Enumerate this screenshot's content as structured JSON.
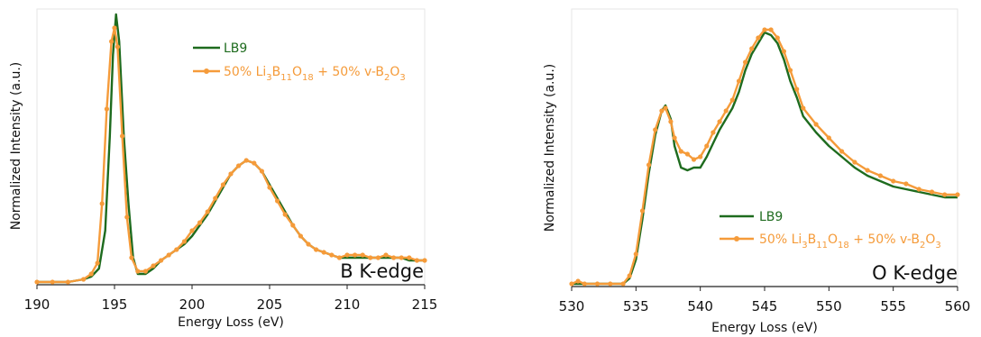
{
  "chart_data": [
    {
      "type": "line",
      "title": "",
      "annotation": "B K-edge",
      "xlabel": "Energy Loss (eV)",
      "ylabel": "Normalized Intensity (a.u.)",
      "xlim": [
        190,
        215
      ],
      "ylim": [
        0,
        1.0
      ],
      "xticks": [
        190,
        195,
        200,
        205,
        210,
        215
      ],
      "grid": false,
      "legend_position": "top-right",
      "series": [
        {
          "name": "LB9",
          "color": "#1e6b1e",
          "marker": "none",
          "points": [
            [
              190,
              0.01
            ],
            [
              191,
              0.01
            ],
            [
              192,
              0.01
            ],
            [
              193,
              0.02
            ],
            [
              193.5,
              0.03
            ],
            [
              194,
              0.06
            ],
            [
              194.4,
              0.2
            ],
            [
              194.7,
              0.55
            ],
            [
              194.9,
              0.85
            ],
            [
              195.1,
              1.0
            ],
            [
              195.3,
              0.9
            ],
            [
              195.6,
              0.55
            ],
            [
              195.9,
              0.3
            ],
            [
              196.2,
              0.1
            ],
            [
              196.5,
              0.04
            ],
            [
              197,
              0.04
            ],
            [
              197.5,
              0.06
            ],
            [
              198,
              0.09
            ],
            [
              198.5,
              0.11
            ],
            [
              199,
              0.13
            ],
            [
              199.5,
              0.15
            ],
            [
              200,
              0.18
            ],
            [
              200.5,
              0.22
            ],
            [
              201,
              0.26
            ],
            [
              201.5,
              0.31
            ],
            [
              202,
              0.36
            ],
            [
              202.5,
              0.41
            ],
            [
              203,
              0.44
            ],
            [
              203.5,
              0.46
            ],
            [
              204,
              0.45
            ],
            [
              204.5,
              0.42
            ],
            [
              205,
              0.37
            ],
            [
              205.5,
              0.32
            ],
            [
              206,
              0.27
            ],
            [
              206.5,
              0.22
            ],
            [
              207,
              0.18
            ],
            [
              207.5,
              0.15
            ],
            [
              208,
              0.13
            ],
            [
              208.5,
              0.12
            ],
            [
              209,
              0.11
            ],
            [
              209.5,
              0.1
            ],
            [
              210,
              0.1
            ],
            [
              210.5,
              0.1
            ],
            [
              211,
              0.1
            ],
            [
              211.5,
              0.1
            ],
            [
              212,
              0.1
            ],
            [
              212.5,
              0.1
            ],
            [
              213,
              0.1
            ],
            [
              213.5,
              0.1
            ],
            [
              214,
              0.09
            ],
            [
              214.5,
              0.09
            ],
            [
              215,
              0.09
            ]
          ]
        },
        {
          "name": "50% Li3B11O18 + 50% v-B2O3",
          "color": "#f59b3a",
          "marker": "circle",
          "points": [
            [
              190,
              0.01
            ],
            [
              191,
              0.01
            ],
            [
              192,
              0.01
            ],
            [
              193,
              0.02
            ],
            [
              193.5,
              0.04
            ],
            [
              193.9,
              0.08
            ],
            [
              194.2,
              0.3
            ],
            [
              194.5,
              0.65
            ],
            [
              194.8,
              0.9
            ],
            [
              195.0,
              0.95
            ],
            [
              195.2,
              0.88
            ],
            [
              195.5,
              0.55
            ],
            [
              195.8,
              0.25
            ],
            [
              196.1,
              0.1
            ],
            [
              196.5,
              0.05
            ],
            [
              197,
              0.05
            ],
            [
              197.5,
              0.07
            ],
            [
              198,
              0.09
            ],
            [
              198.5,
              0.11
            ],
            [
              199,
              0.13
            ],
            [
              199.5,
              0.16
            ],
            [
              200,
              0.2
            ],
            [
              200.5,
              0.23
            ],
            [
              201,
              0.27
            ],
            [
              201.5,
              0.32
            ],
            [
              202,
              0.37
            ],
            [
              202.5,
              0.41
            ],
            [
              203,
              0.44
            ],
            [
              203.5,
              0.46
            ],
            [
              204,
              0.45
            ],
            [
              204.5,
              0.42
            ],
            [
              205,
              0.36
            ],
            [
              205.5,
              0.31
            ],
            [
              206,
              0.26
            ],
            [
              206.5,
              0.22
            ],
            [
              207,
              0.18
            ],
            [
              207.5,
              0.15
            ],
            [
              208,
              0.13
            ],
            [
              208.5,
              0.12
            ],
            [
              209,
              0.11
            ],
            [
              209.5,
              0.1
            ],
            [
              210,
              0.11
            ],
            [
              210.5,
              0.11
            ],
            [
              211,
              0.11
            ],
            [
              211.5,
              0.1
            ],
            [
              212,
              0.1
            ],
            [
              212.5,
              0.11
            ],
            [
              213,
              0.1
            ],
            [
              213.5,
              0.1
            ],
            [
              214,
              0.1
            ],
            [
              214.5,
              0.09
            ],
            [
              215,
              0.09
            ]
          ]
        }
      ]
    },
    {
      "type": "line",
      "title": "",
      "annotation": "O K-edge",
      "xlabel": "Energy Loss (eV)",
      "ylabel": "Normalized Intensity (a.u.)",
      "xlim": [
        530,
        560
      ],
      "ylim": [
        0,
        1.0
      ],
      "xticks": [
        530,
        535,
        540,
        545,
        550,
        555,
        560
      ],
      "grid": false,
      "legend_position": "bottom-right",
      "series": [
        {
          "name": "LB9",
          "color": "#1e6b1e",
          "marker": "none",
          "points": [
            [
              530,
              0.01
            ],
            [
              531,
              0.01
            ],
            [
              532,
              0.01
            ],
            [
              533,
              0.01
            ],
            [
              534,
              0.01
            ],
            [
              534.5,
              0.03
            ],
            [
              535,
              0.1
            ],
            [
              535.5,
              0.25
            ],
            [
              536,
              0.42
            ],
            [
              536.5,
              0.56
            ],
            [
              537,
              0.65
            ],
            [
              537.3,
              0.67
            ],
            [
              537.7,
              0.62
            ],
            [
              538,
              0.52
            ],
            [
              538.5,
              0.44
            ],
            [
              539,
              0.43
            ],
            [
              539.5,
              0.44
            ],
            [
              540,
              0.44
            ],
            [
              540.5,
              0.48
            ],
            [
              541,
              0.53
            ],
            [
              541.5,
              0.58
            ],
            [
              542,
              0.62
            ],
            [
              542.5,
              0.66
            ],
            [
              543,
              0.72
            ],
            [
              543.5,
              0.8
            ],
            [
              544,
              0.86
            ],
            [
              544.5,
              0.9
            ],
            [
              545,
              0.94
            ],
            [
              545.5,
              0.93
            ],
            [
              546,
              0.9
            ],
            [
              546.5,
              0.84
            ],
            [
              547,
              0.76
            ],
            [
              547.5,
              0.7
            ],
            [
              548,
              0.63
            ],
            [
              549,
              0.57
            ],
            [
              550,
              0.52
            ],
            [
              551,
              0.48
            ],
            [
              552,
              0.44
            ],
            [
              553,
              0.41
            ],
            [
              554,
              0.39
            ],
            [
              555,
              0.37
            ],
            [
              556,
              0.36
            ],
            [
              557,
              0.35
            ],
            [
              558,
              0.34
            ],
            [
              559,
              0.33
            ],
            [
              560,
              0.33
            ]
          ]
        },
        {
          "name": "50% Li3B11O18 + 50% v-B2O3",
          "color": "#f59b3a",
          "marker": "circle",
          "points": [
            [
              530,
              0.01
            ],
            [
              530.5,
              0.02
            ],
            [
              531,
              0.01
            ],
            [
              532,
              0.01
            ],
            [
              533,
              0.01
            ],
            [
              534,
              0.01
            ],
            [
              534.5,
              0.04
            ],
            [
              535,
              0.12
            ],
            [
              535.5,
              0.28
            ],
            [
              536,
              0.45
            ],
            [
              536.5,
              0.58
            ],
            [
              537,
              0.65
            ],
            [
              537.3,
              0.66
            ],
            [
              537.7,
              0.61
            ],
            [
              538,
              0.55
            ],
            [
              538.5,
              0.5
            ],
            [
              539,
              0.49
            ],
            [
              539.5,
              0.47
            ],
            [
              540,
              0.48
            ],
            [
              540.5,
              0.52
            ],
            [
              541,
              0.57
            ],
            [
              541.5,
              0.61
            ],
            [
              542,
              0.65
            ],
            [
              542.5,
              0.69
            ],
            [
              543,
              0.76
            ],
            [
              543.5,
              0.83
            ],
            [
              544,
              0.88
            ],
            [
              544.5,
              0.92
            ],
            [
              545,
              0.95
            ],
            [
              545.5,
              0.95
            ],
            [
              546,
              0.92
            ],
            [
              546.5,
              0.87
            ],
            [
              547,
              0.8
            ],
            [
              547.5,
              0.73
            ],
            [
              548,
              0.66
            ],
            [
              549,
              0.6
            ],
            [
              550,
              0.55
            ],
            [
              551,
              0.5
            ],
            [
              552,
              0.46
            ],
            [
              553,
              0.43
            ],
            [
              554,
              0.41
            ],
            [
              555,
              0.39
            ],
            [
              556,
              0.38
            ],
            [
              557,
              0.36
            ],
            [
              558,
              0.35
            ],
            [
              559,
              0.34
            ],
            [
              560,
              0.34
            ]
          ]
        }
      ]
    }
  ]
}
